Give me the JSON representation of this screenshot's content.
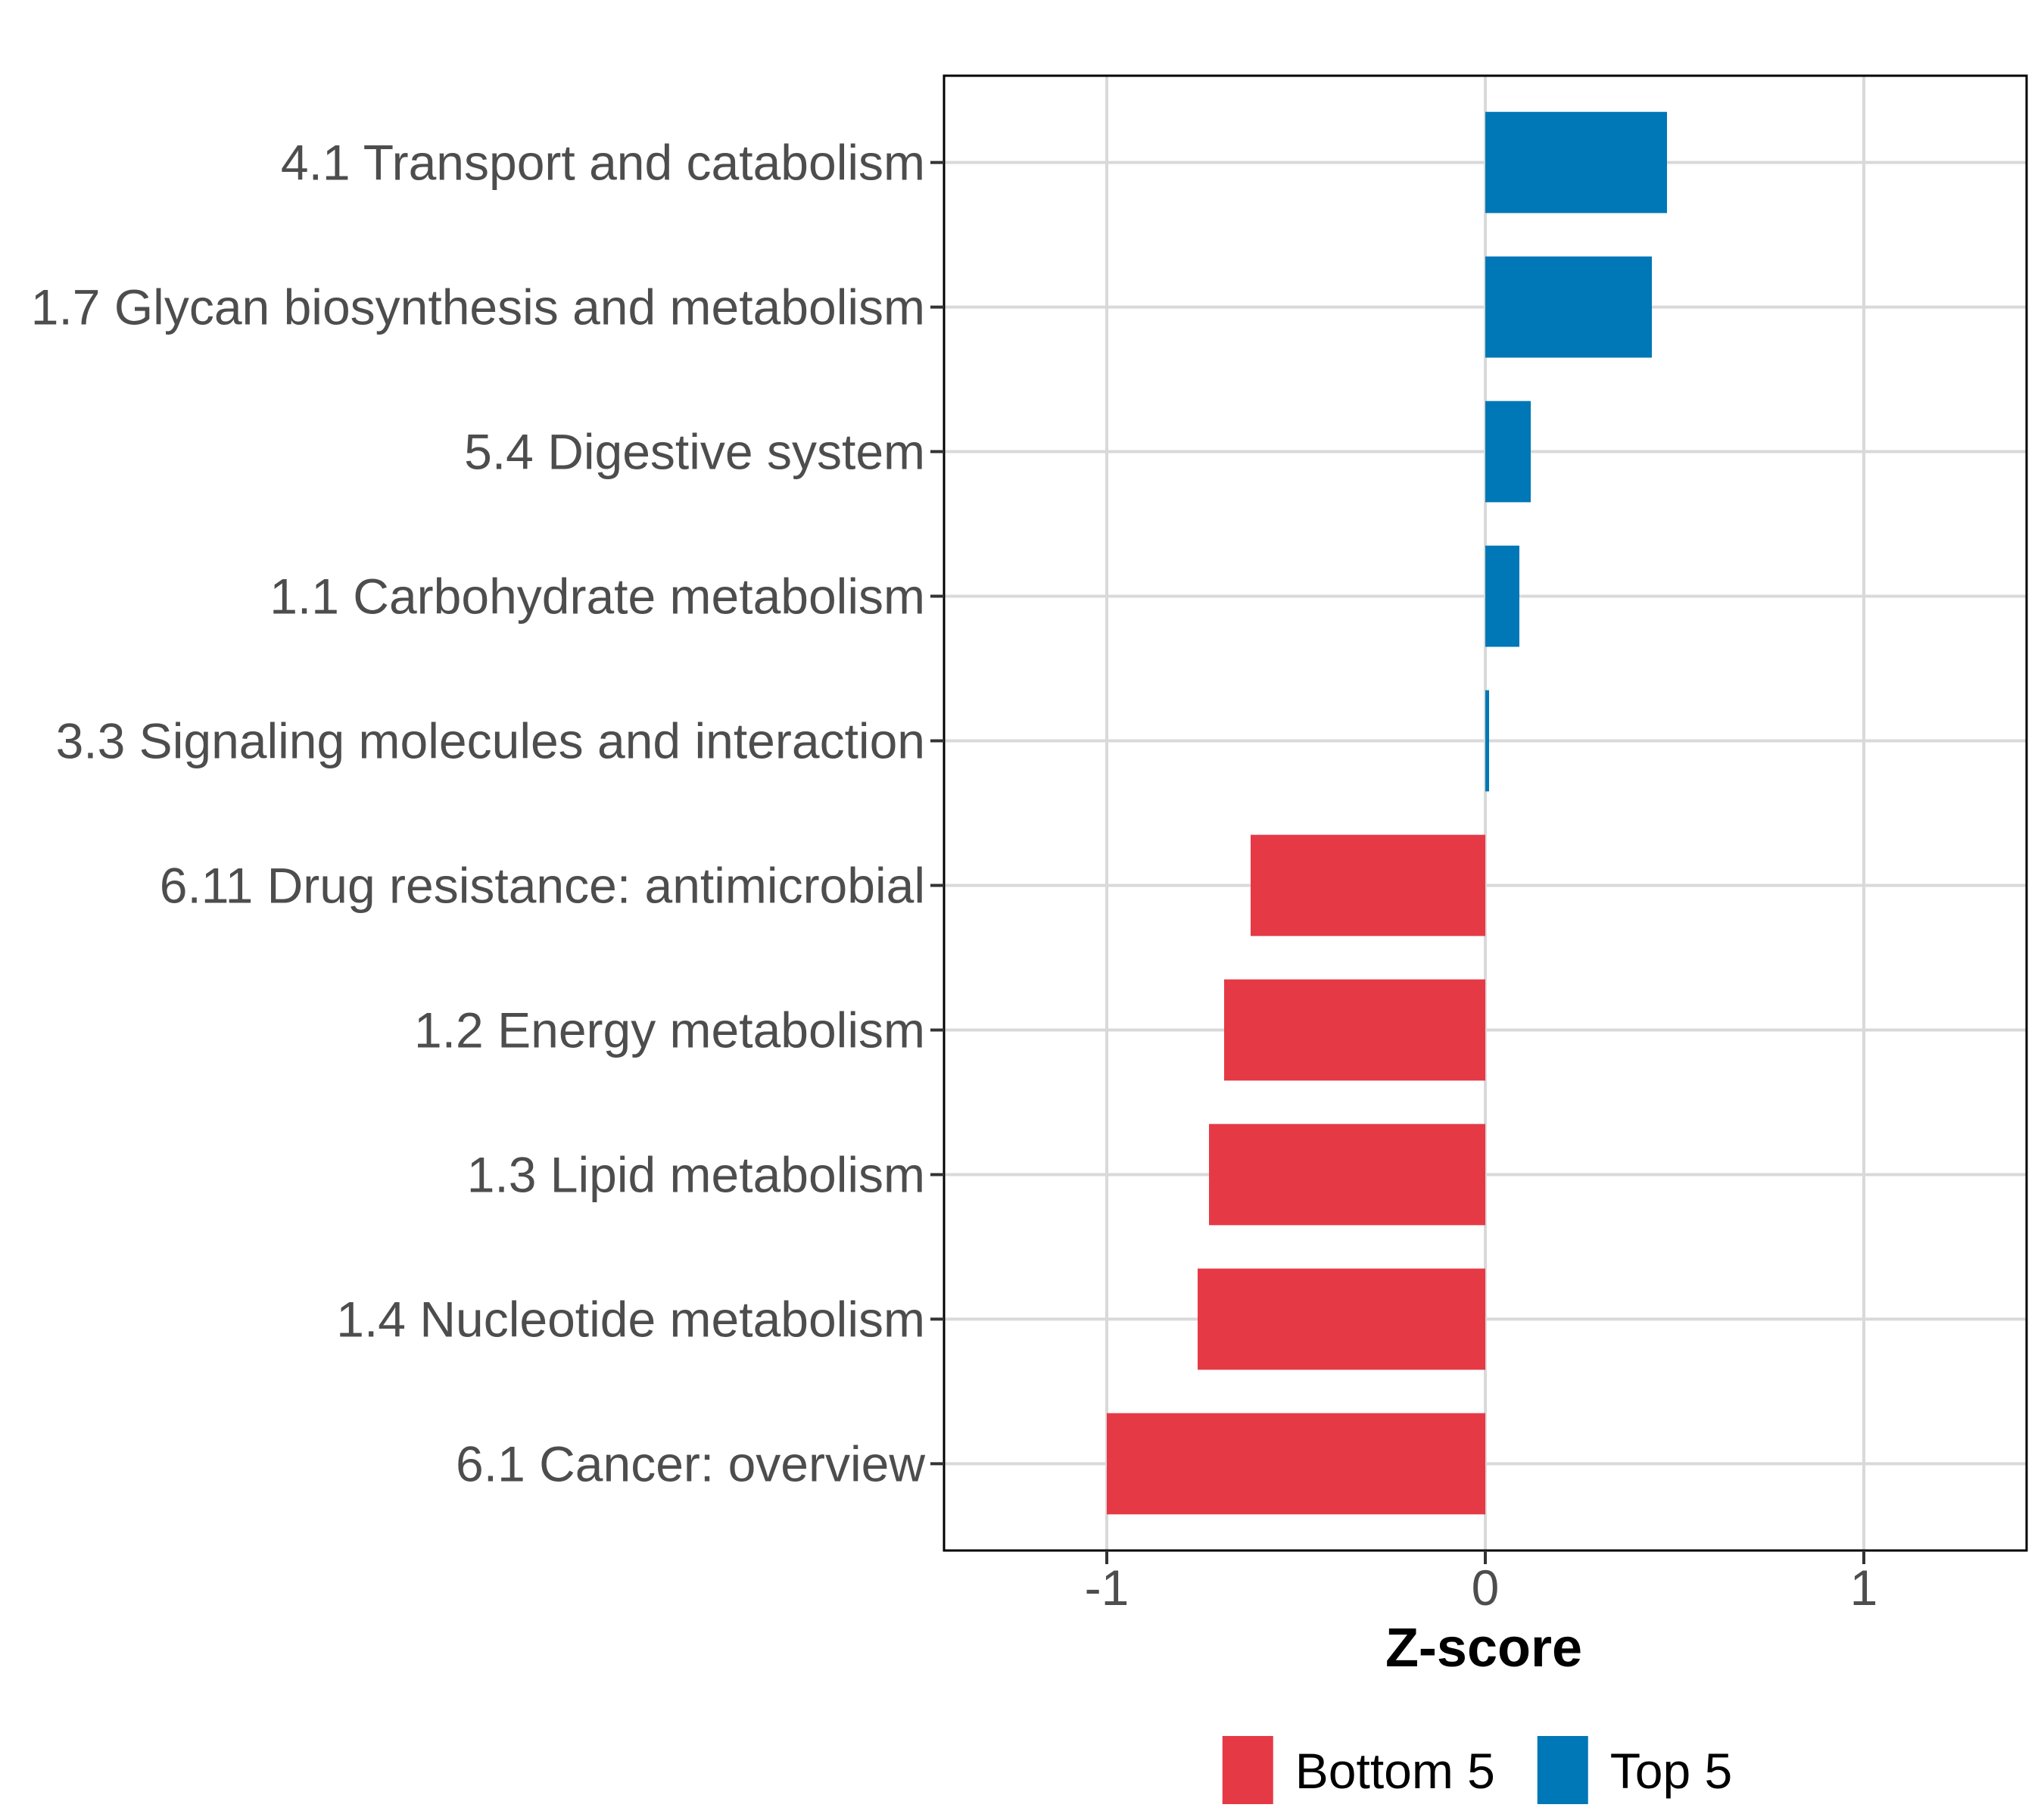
{
  "chart_data": {
    "type": "bar",
    "orientation": "horizontal",
    "title": "",
    "xlabel": "Z-score",
    "ylabel": "",
    "xlim": [
      -1.43,
      1.43
    ],
    "x_ticks": [
      -1,
      0,
      1
    ],
    "x_tick_labels": [
      "-1",
      "0",
      "1"
    ],
    "grid": true,
    "legend_position": "bottom",
    "categories": [
      "4.1 Transport and catabolism",
      "1.7 Glycan biosynthesis and metabolism",
      "5.4 Digestive system",
      "1.1 Carbohydrate metabolism",
      "3.3 Signaling molecules and interaction",
      "6.11 Drug resistance: antimicrobial",
      "1.2 Energy metabolism",
      "1.3 Lipid metabolism",
      "1.4 Nucleotide metabolism",
      "6.1 Cancer: overview"
    ],
    "values": [
      0.48,
      0.44,
      0.12,
      0.09,
      0.01,
      -0.62,
      -0.69,
      -0.73,
      -0.76,
      -1.0
    ],
    "groups": [
      "Top 5",
      "Top 5",
      "Top 5",
      "Top 5",
      "Top 5",
      "Bottom 5",
      "Bottom 5",
      "Bottom 5",
      "Bottom 5",
      "Bottom 5"
    ],
    "legend": [
      {
        "name": "Bottom 5",
        "color": "#E63946"
      },
      {
        "name": "Top 5",
        "color": "#0077B6"
      }
    ]
  }
}
